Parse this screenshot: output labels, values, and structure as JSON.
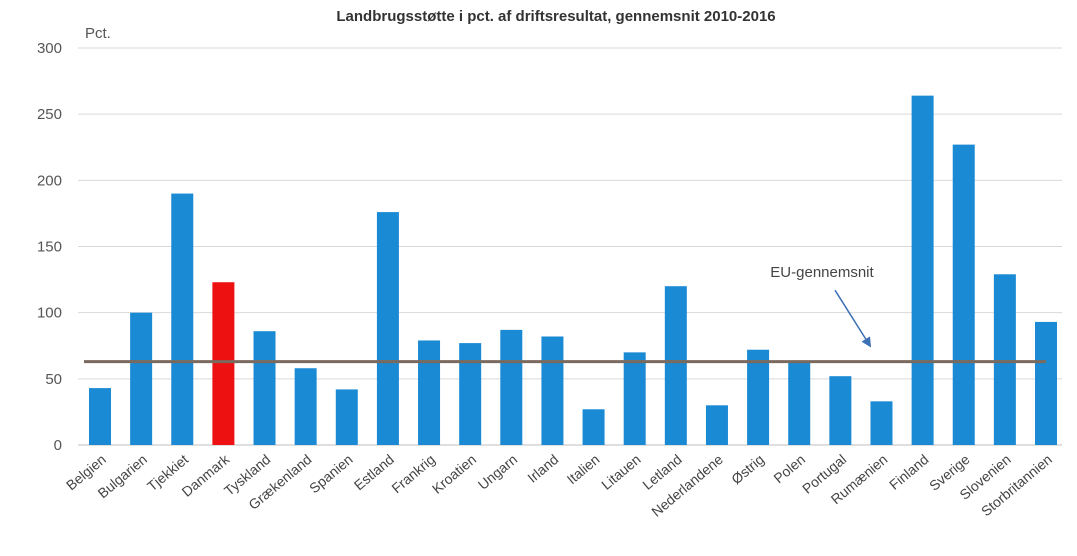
{
  "chart_data": {
    "type": "bar",
    "title": "Landbrugsstøtte i pct. af driftsresultat, gennemsnit 2010-2016",
    "ylabel": "Pct.",
    "xlabel": "",
    "ylim": [
      0,
      300
    ],
    "yticks": [
      0,
      50,
      100,
      150,
      200,
      250,
      300
    ],
    "grid": true,
    "categories": [
      "Belgien",
      "Bulgarien",
      "Tjekkiet",
      "Danmark",
      "Tyskland",
      "Grækenland",
      "Spanien",
      "Estland",
      "Frankrig",
      "Kroatien",
      "Ungarn",
      "Irland",
      "Italien",
      "Litauen",
      "Letland",
      "Nederlandene",
      "Østrig",
      "Polen",
      "Portugal",
      "Rumænien",
      "Finland",
      "Sverige",
      "Slovenien",
      "Storbritannien"
    ],
    "values": [
      43,
      100,
      190,
      123,
      86,
      58,
      42,
      176,
      79,
      77,
      87,
      82,
      27,
      70,
      120,
      30,
      72,
      62,
      52,
      33,
      264,
      227,
      129,
      93
    ],
    "highlight": "Danmark",
    "colors": {
      "bar": "#1a8ad4",
      "highlight": "#ee1111",
      "reference": "#7a6a5e",
      "grid": "#d9d9d9",
      "arrow": "#3b6fb6"
    },
    "reference_line": {
      "label": "EU-gennemsnit",
      "value": 63
    }
  }
}
